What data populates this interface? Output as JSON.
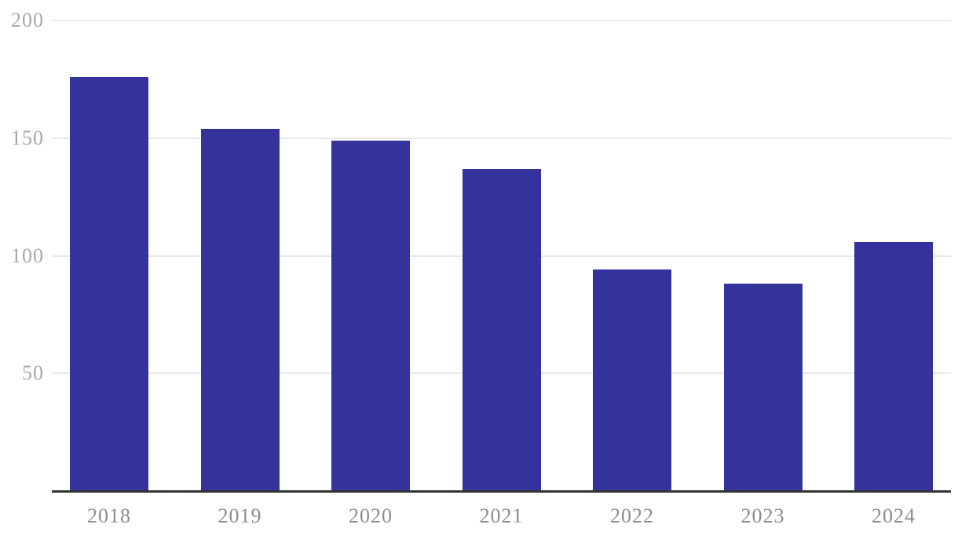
{
  "chart_data": {
    "type": "bar",
    "title": "",
    "xlabel": "",
    "ylabel": "",
    "categories": [
      "2018",
      "2019",
      "2020",
      "2021",
      "2022",
      "2023",
      "2024"
    ],
    "values": [
      176,
      154,
      149,
      137,
      94,
      88,
      106
    ],
    "ylim": [
      0,
      200
    ],
    "yticks": [
      50,
      100,
      150,
      200
    ],
    "grid": true,
    "legend": false,
    "colors": {
      "bar": "#34329b",
      "gridline": "#e9e9e9",
      "axis_line": "#333333",
      "y_tick_text": "#a8a8a8",
      "x_tick_text": "#8c8c8c",
      "background": "#ffffff"
    }
  }
}
